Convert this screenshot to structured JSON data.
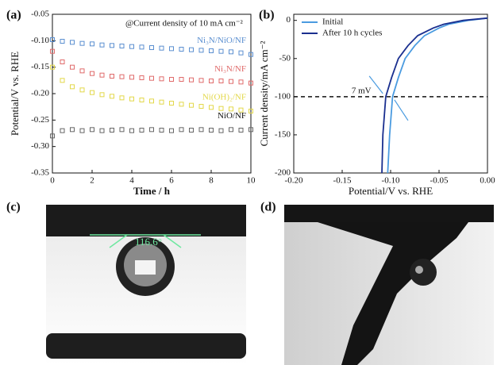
{
  "chart_data": [
    {
      "type": "scatter",
      "panel": "(a)",
      "annotation": "@Current density of 10 mA cm⁻²",
      "x_label": "Time / h",
      "y_label": "Potential/V vs. RHE",
      "x": [
        0,
        0.5,
        1,
        1.5,
        2,
        2.5,
        3,
        3.5,
        4,
        4.5,
        5,
        5.5,
        6,
        6.5,
        7,
        7.5,
        8,
        8.5,
        9,
        9.5,
        10
      ],
      "series": [
        {
          "name": "Ni₃N/NiO/NF",
          "color": "#5b8fd0",
          "values": [
            -0.098,
            -0.101,
            -0.103,
            -0.105,
            -0.106,
            -0.108,
            -0.109,
            -0.11,
            -0.111,
            -0.112,
            -0.113,
            -0.114,
            -0.115,
            -0.116,
            -0.117,
            -0.118,
            -0.119,
            -0.12,
            -0.121,
            -0.123,
            -0.126
          ]
        },
        {
          "name": "Ni₃N/NF",
          "color": "#e06b6b",
          "values": [
            -0.12,
            -0.14,
            -0.15,
            -0.157,
            -0.162,
            -0.165,
            -0.167,
            -0.168,
            -0.169,
            -0.17,
            -0.171,
            -0.172,
            -0.173,
            -0.173,
            -0.174,
            -0.175,
            -0.176,
            -0.176,
            -0.177,
            -0.178,
            -0.18
          ]
        },
        {
          "name": "Ni(OH)₂/NF",
          "color": "#e3d84a",
          "values": [
            -0.15,
            -0.175,
            -0.187,
            -0.193,
            -0.198,
            -0.202,
            -0.205,
            -0.208,
            -0.21,
            -0.212,
            -0.214,
            -0.216,
            -0.218,
            -0.22,
            -0.222,
            -0.224,
            -0.226,
            -0.228,
            -0.229,
            -0.231,
            -0.233
          ]
        },
        {
          "name": "NiO/NF",
          "color": "#666666",
          "values": [
            -0.28,
            -0.27,
            -0.268,
            -0.27,
            -0.268,
            -0.27,
            -0.269,
            -0.268,
            -0.27,
            -0.269,
            -0.268,
            -0.269,
            -0.27,
            -0.268,
            -0.269,
            -0.268,
            -0.269,
            -0.27,
            -0.268,
            -0.269,
            -0.268
          ]
        }
      ],
      "xlim": [
        0,
        10
      ],
      "xticks": [
        0,
        2,
        4,
        6,
        8,
        10
      ],
      "ylim": [
        -0.35,
        -0.05
      ],
      "yticks": [
        -0.35,
        {
          "value": -0.3,
          "label": "-0.30"
        },
        -0.25,
        {
          "value": -0.2,
          "label": "-0.20"
        },
        -0.15,
        {
          "value": -0.1,
          "label": "-0.10"
        },
        -0.05
      ]
    },
    {
      "type": "line",
      "panel": "(b)",
      "annotation": "7 mV",
      "hline": -100,
      "x_label": "Potential/V vs. RHE",
      "y_label": "Current density/mA cm⁻²",
      "legend": "upper left",
      "series": [
        {
          "name": "Initial",
          "color": "#4a9be0",
          "x": [
            -0.103,
            -0.101,
            -0.098,
            -0.092,
            -0.085,
            -0.075,
            -0.065,
            -0.05,
            -0.04,
            -0.02,
            0
          ],
          "values": [
            -200,
            -150,
            -100,
            -75,
            -50,
            -33,
            -20,
            -10,
            -5,
            0,
            3
          ]
        },
        {
          "name": "After 10 h cycles",
          "color": "#1a2f8f",
          "x": [
            -0.109,
            -0.108,
            -0.105,
            -0.099,
            -0.092,
            -0.082,
            -0.072,
            -0.056,
            -0.045,
            -0.025,
            0
          ],
          "values": [
            -200,
            -150,
            -100,
            -75,
            -50,
            -33,
            -20,
            -10,
            -5,
            0,
            3
          ]
        }
      ],
      "xlim": [
        -0.2,
        0
      ],
      "xticks": [
        {
          "value": -0.2,
          "label": "-0.20"
        },
        -0.15,
        {
          "value": -0.1,
          "label": "-0.10"
        },
        -0.05,
        {
          "value": 0,
          "label": "0.00"
        }
      ],
      "ylim": [
        -200,
        8
      ],
      "yticks": [
        -200,
        -150,
        -100,
        -50,
        0
      ]
    }
  ],
  "images": [
    {
      "panel": "(c)",
      "annotation": "116.6°"
    },
    {
      "panel": "(d)"
    }
  ]
}
